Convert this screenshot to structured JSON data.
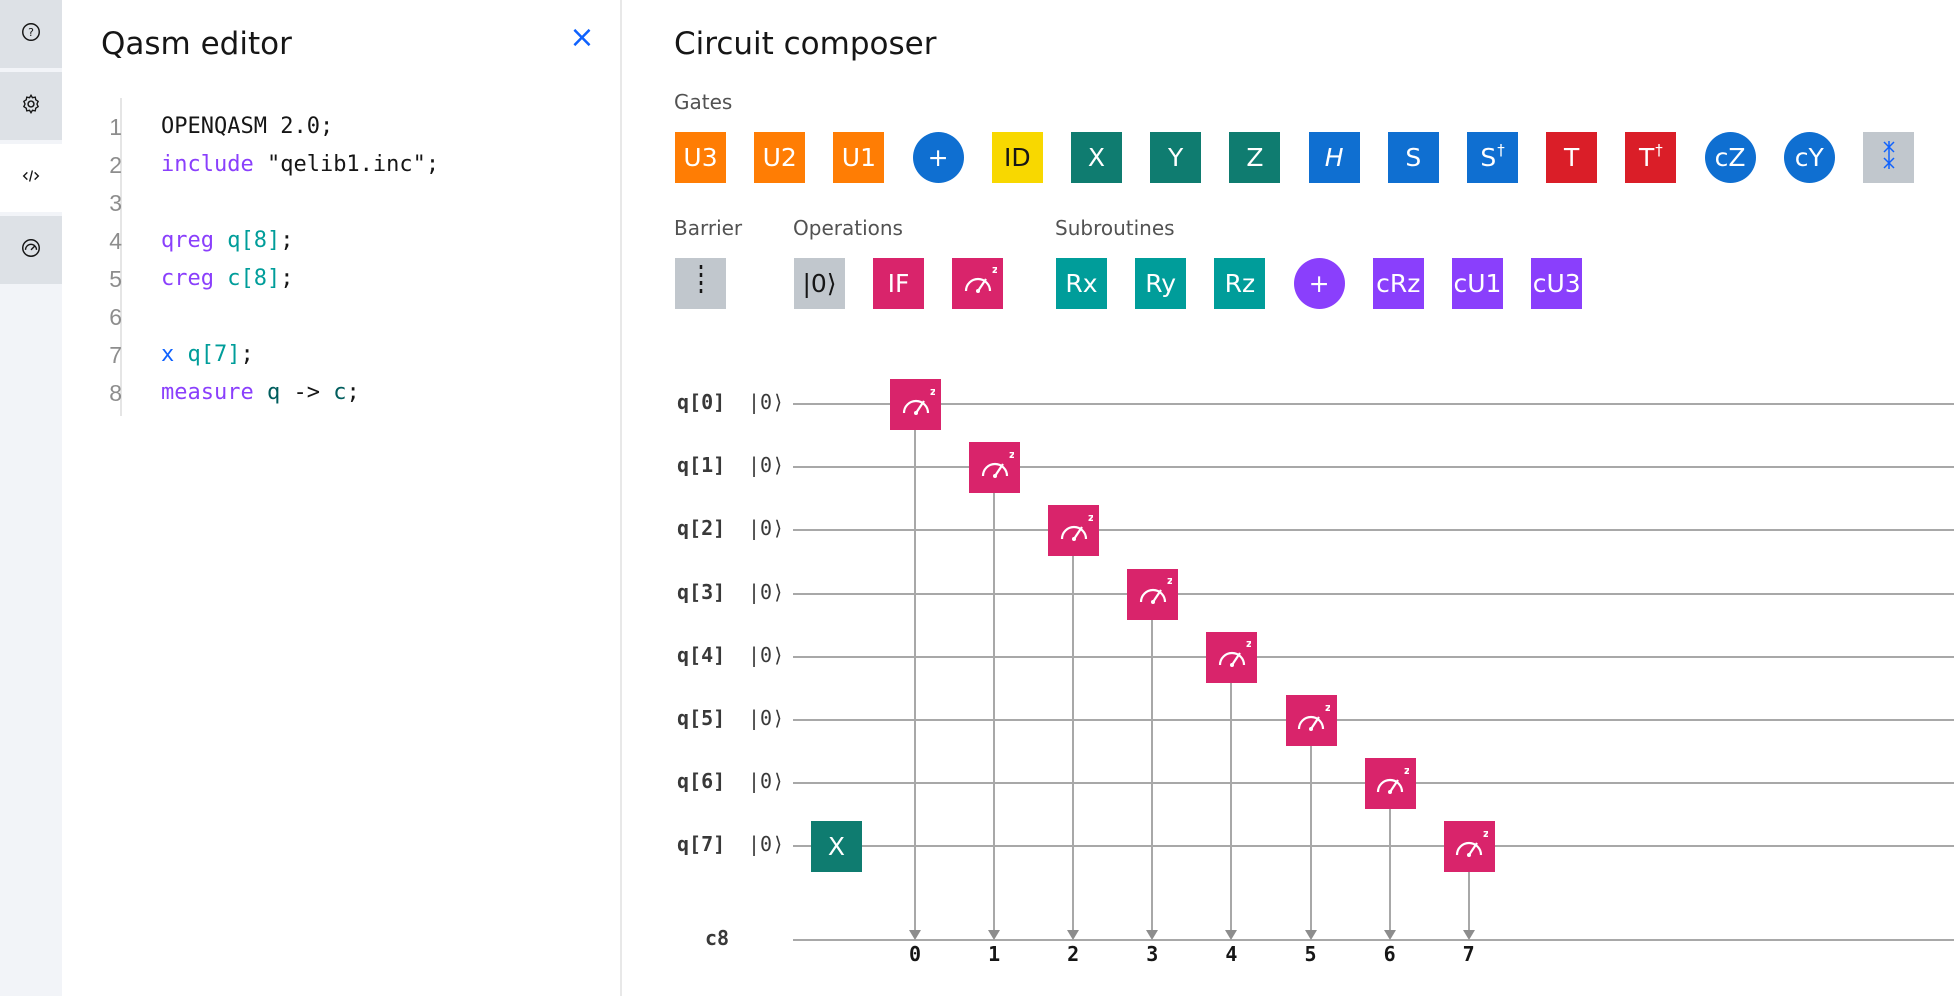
{
  "rail": {
    "items": [
      {
        "name": "help-icon"
      },
      {
        "name": "settings-icon"
      },
      {
        "name": "code-icon"
      },
      {
        "name": "results-gauge-icon"
      }
    ]
  },
  "editor": {
    "title": "Qasm editor",
    "close_label": "×",
    "lines": [
      {
        "n": "1",
        "tokens": [
          {
            "t": "OPENQASM 2.0;",
            "c": "str"
          }
        ]
      },
      {
        "n": "2",
        "tokens": [
          {
            "t": "include",
            "c": "kw"
          },
          {
            "t": " \"qelib1.inc\";",
            "c": "str"
          }
        ]
      },
      {
        "n": "3",
        "tokens": []
      },
      {
        "n": "4",
        "tokens": [
          {
            "t": "qreg",
            "c": "kw"
          },
          {
            "t": " ",
            "c": "str"
          },
          {
            "t": "q[8]",
            "c": "reg"
          },
          {
            "t": ";",
            "c": "str"
          }
        ]
      },
      {
        "n": "5",
        "tokens": [
          {
            "t": "creg",
            "c": "kw"
          },
          {
            "t": " ",
            "c": "str"
          },
          {
            "t": "c[8]",
            "c": "reg"
          },
          {
            "t": ";",
            "c": "str"
          }
        ]
      },
      {
        "n": "6",
        "tokens": []
      },
      {
        "n": "7",
        "tokens": [
          {
            "t": "x",
            "c": "gate"
          },
          {
            "t": " ",
            "c": "str"
          },
          {
            "t": "q[7]",
            "c": "reg"
          },
          {
            "t": ";",
            "c": "str"
          }
        ]
      },
      {
        "n": "8",
        "tokens": [
          {
            "t": "measure",
            "c": "kw"
          },
          {
            "t": " ",
            "c": "str"
          },
          {
            "t": "q",
            "c": "var"
          },
          {
            "t": " -> ",
            "c": "str"
          },
          {
            "t": "c",
            "c": "var"
          },
          {
            "t": ";",
            "c": "str"
          }
        ]
      }
    ]
  },
  "composer": {
    "title": "Circuit composer",
    "gates_label": "Gates",
    "barrier_label": "Barrier",
    "operations_label": "Operations",
    "subroutines_label": "Subroutines",
    "gates": [
      {
        "label": "U3",
        "color": "#ff7d04",
        "round": false,
        "name": "gate-u3"
      },
      {
        "label": "U2",
        "color": "#ff7d04",
        "round": false,
        "name": "gate-u2"
      },
      {
        "label": "U1",
        "color": "#ff7d04",
        "round": false,
        "name": "gate-u1"
      },
      {
        "label": "+",
        "color": "#0f6fd1",
        "round": true,
        "name": "gate-cnot"
      },
      {
        "label": "ID",
        "color": "#f8d800",
        "round": false,
        "name": "gate-id",
        "dark": true
      },
      {
        "label": "X",
        "color": "#0f7c70",
        "round": false,
        "name": "gate-x"
      },
      {
        "label": "Y",
        "color": "#0f7c70",
        "round": false,
        "name": "gate-y"
      },
      {
        "label": "Z",
        "color": "#0f7c70",
        "round": false,
        "name": "gate-z"
      },
      {
        "label": "H",
        "color": "#0f6fd1",
        "round": false,
        "name": "gate-h",
        "italic": true
      },
      {
        "label": "S",
        "color": "#0f6fd1",
        "round": false,
        "name": "gate-s"
      },
      {
        "label": "S",
        "sup": "†",
        "color": "#0f6fd1",
        "round": false,
        "name": "gate-sdg"
      },
      {
        "label": "T",
        "color": "#da1e28",
        "round": false,
        "name": "gate-t"
      },
      {
        "label": "T",
        "sup": "†",
        "color": "#da1e28",
        "round": false,
        "name": "gate-tdg"
      },
      {
        "label": "cZ",
        "color": "#0f6fd1",
        "round": true,
        "name": "gate-cz"
      },
      {
        "label": "cY",
        "color": "#0f6fd1",
        "round": true,
        "name": "gate-cy"
      },
      {
        "label": "swap",
        "color": "#c1c7cd",
        "round": false,
        "name": "gate-swap",
        "icon": true
      }
    ],
    "operations": [
      {
        "label": "|0⟩",
        "color": "#c1c7cd",
        "name": "op-reset",
        "dark": true
      },
      {
        "label": "IF",
        "color": "#d9246b",
        "name": "op-if"
      },
      {
        "label": "measure",
        "color": "#d9246b",
        "name": "op-measure",
        "icon": true
      }
    ],
    "subroutines": [
      {
        "label": "Rx",
        "color": "#009d9a",
        "round": false,
        "name": "sub-rx"
      },
      {
        "label": "Ry",
        "color": "#009d9a",
        "round": false,
        "name": "sub-ry"
      },
      {
        "label": "Rz",
        "color": "#009d9a",
        "round": false,
        "name": "sub-rz"
      },
      {
        "label": "+",
        "color": "#8a3ffc",
        "round": true,
        "name": "sub-add"
      },
      {
        "label": "cRz",
        "color": "#8a3ffc",
        "round": false,
        "name": "sub-crz"
      },
      {
        "label": "cU1",
        "color": "#8a3ffc",
        "round": false,
        "name": "sub-cu1"
      },
      {
        "label": "cU3",
        "color": "#8a3ffc",
        "round": false,
        "name": "sub-cu3"
      }
    ],
    "circuit": {
      "qubits": [
        "q[0]",
        "q[1]",
        "q[2]",
        "q[3]",
        "q[4]",
        "q[5]",
        "q[6]",
        "q[7]"
      ],
      "init_state": "|0⟩",
      "creg": "c8",
      "x_gate_label": "X",
      "measurements": [
        "0",
        "1",
        "2",
        "3",
        "4",
        "5",
        "6",
        "7"
      ]
    }
  }
}
